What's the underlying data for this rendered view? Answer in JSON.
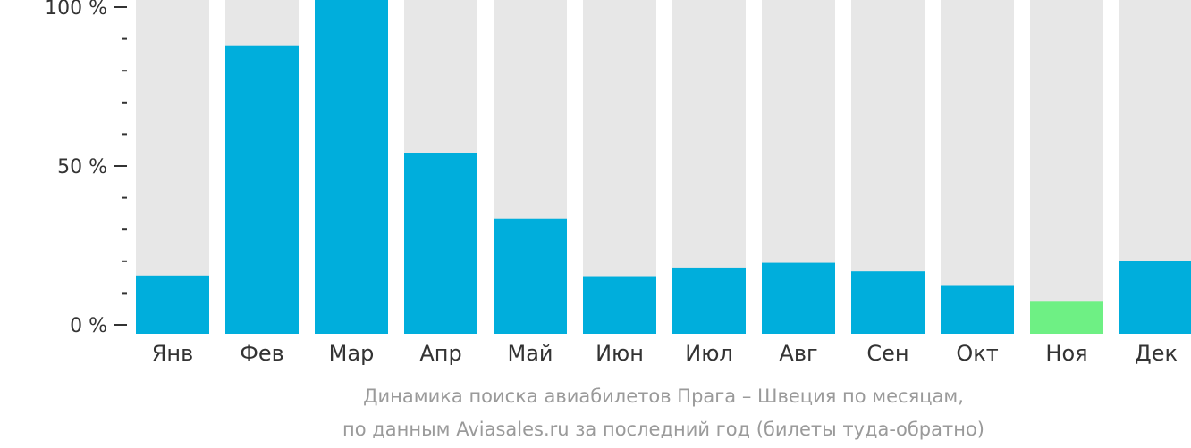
{
  "chart_data": {
    "type": "bar",
    "categories": [
      "Янв",
      "Фев",
      "Мар",
      "Апр",
      "Май",
      "Июн",
      "Июл",
      "Авг",
      "Сен",
      "Окт",
      "Ноя",
      "Дек"
    ],
    "values": [
      15.5,
      88,
      106,
      54,
      33.5,
      15.3,
      18,
      19.5,
      16.8,
      12.5,
      7.5,
      20
    ],
    "ylim": [
      0,
      100
    ],
    "yticks": [
      {
        "value": 0,
        "label": "0 %"
      },
      {
        "value": 50,
        "label": "50 %"
      },
      {
        "value": 100,
        "label": "100 %"
      }
    ],
    "y_minor_step": 10,
    "grid": false,
    "colors": {
      "bar": "#00AEDC",
      "highlight": "#6EF084",
      "track": "#E7E7E7",
      "axis": "#333333",
      "caption": "#9A9A9A"
    },
    "highlight_index": 10,
    "caption_lines": [
      "Динамика поиска авиабилетов Прага – Швеция по месяцам,",
      "по данным Aviasales.ru за последний год (билеты туда-обратно)"
    ]
  }
}
